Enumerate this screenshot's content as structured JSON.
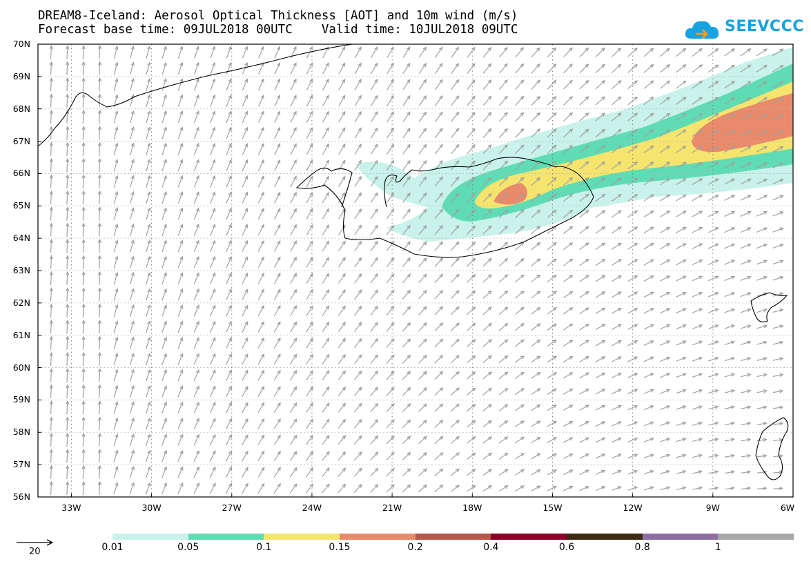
{
  "header": {
    "title_line1": "DREAM8-Iceland: Aerosol Optical Thickness [AOT] and 10m wind (m/s)",
    "title_line2": "Forecast base time: 09JUL2018 00UTC    Valid time: 10JUL2018 09UTC"
  },
  "logo": {
    "text": "SEEVCCC",
    "icon": "cloud-icon",
    "color": "#17a3e0"
  },
  "map": {
    "lat_labels": [
      "70N",
      "69N",
      "68N",
      "67N",
      "66N",
      "65N",
      "64N",
      "63N",
      "62N",
      "61N",
      "60N",
      "59N",
      "58N",
      "57N",
      "56N"
    ],
    "lon_labels": [
      "33W",
      "30W",
      "27W",
      "24W",
      "21W",
      "18W",
      "15W",
      "12W",
      "9W",
      "6W"
    ],
    "lat_range": [
      56,
      70
    ],
    "lon_range": [
      -34.25,
      -6
    ],
    "wind_arrow_color": "#a0a0a0",
    "coastline_color": "#000000",
    "gridline_style": "dotted"
  },
  "legend": {
    "colors": [
      "#c8f2ea",
      "#5fdcb4",
      "#f5e46e",
      "#e98b6a",
      "#b8564a",
      "#8a0029",
      "#3f2a14",
      "#8f6ea3",
      "#a8a8a8"
    ],
    "labels": [
      "0.01",
      "0.05",
      "0.1",
      "0.15",
      "0.2",
      "0.4",
      "0.6",
      "0.8",
      "1"
    ],
    "wind_reference": "20"
  }
}
